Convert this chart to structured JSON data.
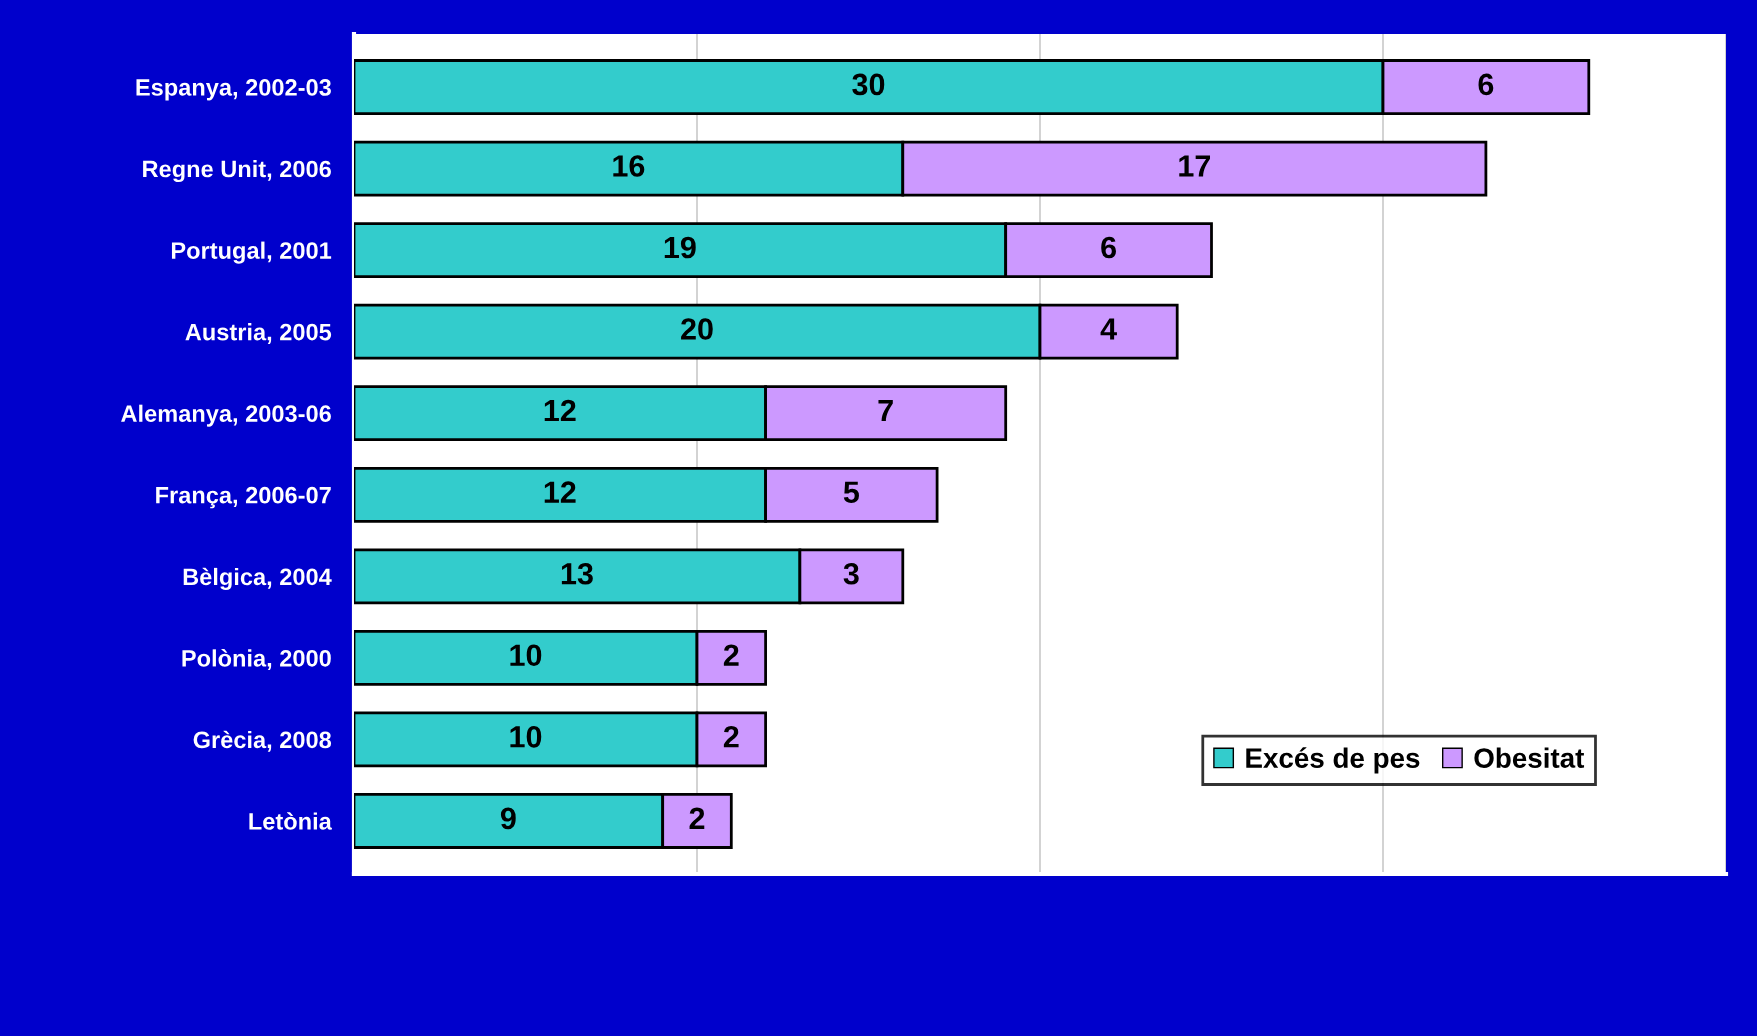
{
  "chart_data": {
    "type": "bar",
    "orientation": "horizontal",
    "stacked": true,
    "categories": [
      "Espanya, 2002-03",
      "Regne Unit, 2006",
      "Portugal, 2001",
      "Austria, 2005",
      "Alemanya, 2003-06",
      "França, 2006-07",
      "Bèlgica, 2004",
      "Polònia, 2000",
      "Grècia, 2008",
      "Letònia"
    ],
    "series": [
      {
        "name": "Excés de pes",
        "color": "#33cccc",
        "values": [
          30,
          16,
          19,
          20,
          12,
          12,
          13,
          10,
          10,
          9
        ]
      },
      {
        "name": "Obesitat",
        "color": "#cc99ff",
        "values": [
          6,
          17,
          6,
          4,
          7,
          5,
          3,
          2,
          2,
          2
        ]
      }
    ],
    "xlim": [
      0,
      40
    ],
    "xticks": [
      {
        "value": 0,
        "label": null
      },
      {
        "value": 10,
        "label": null
      },
      {
        "value": 20,
        "label": null
      },
      {
        "value": 30,
        "label": null
      },
      {
        "value": 40,
        "label": null
      }
    ],
    "tick_labels": "y",
    "grid": "x",
    "legend": "bottom right",
    "data_labels": true
  }
}
